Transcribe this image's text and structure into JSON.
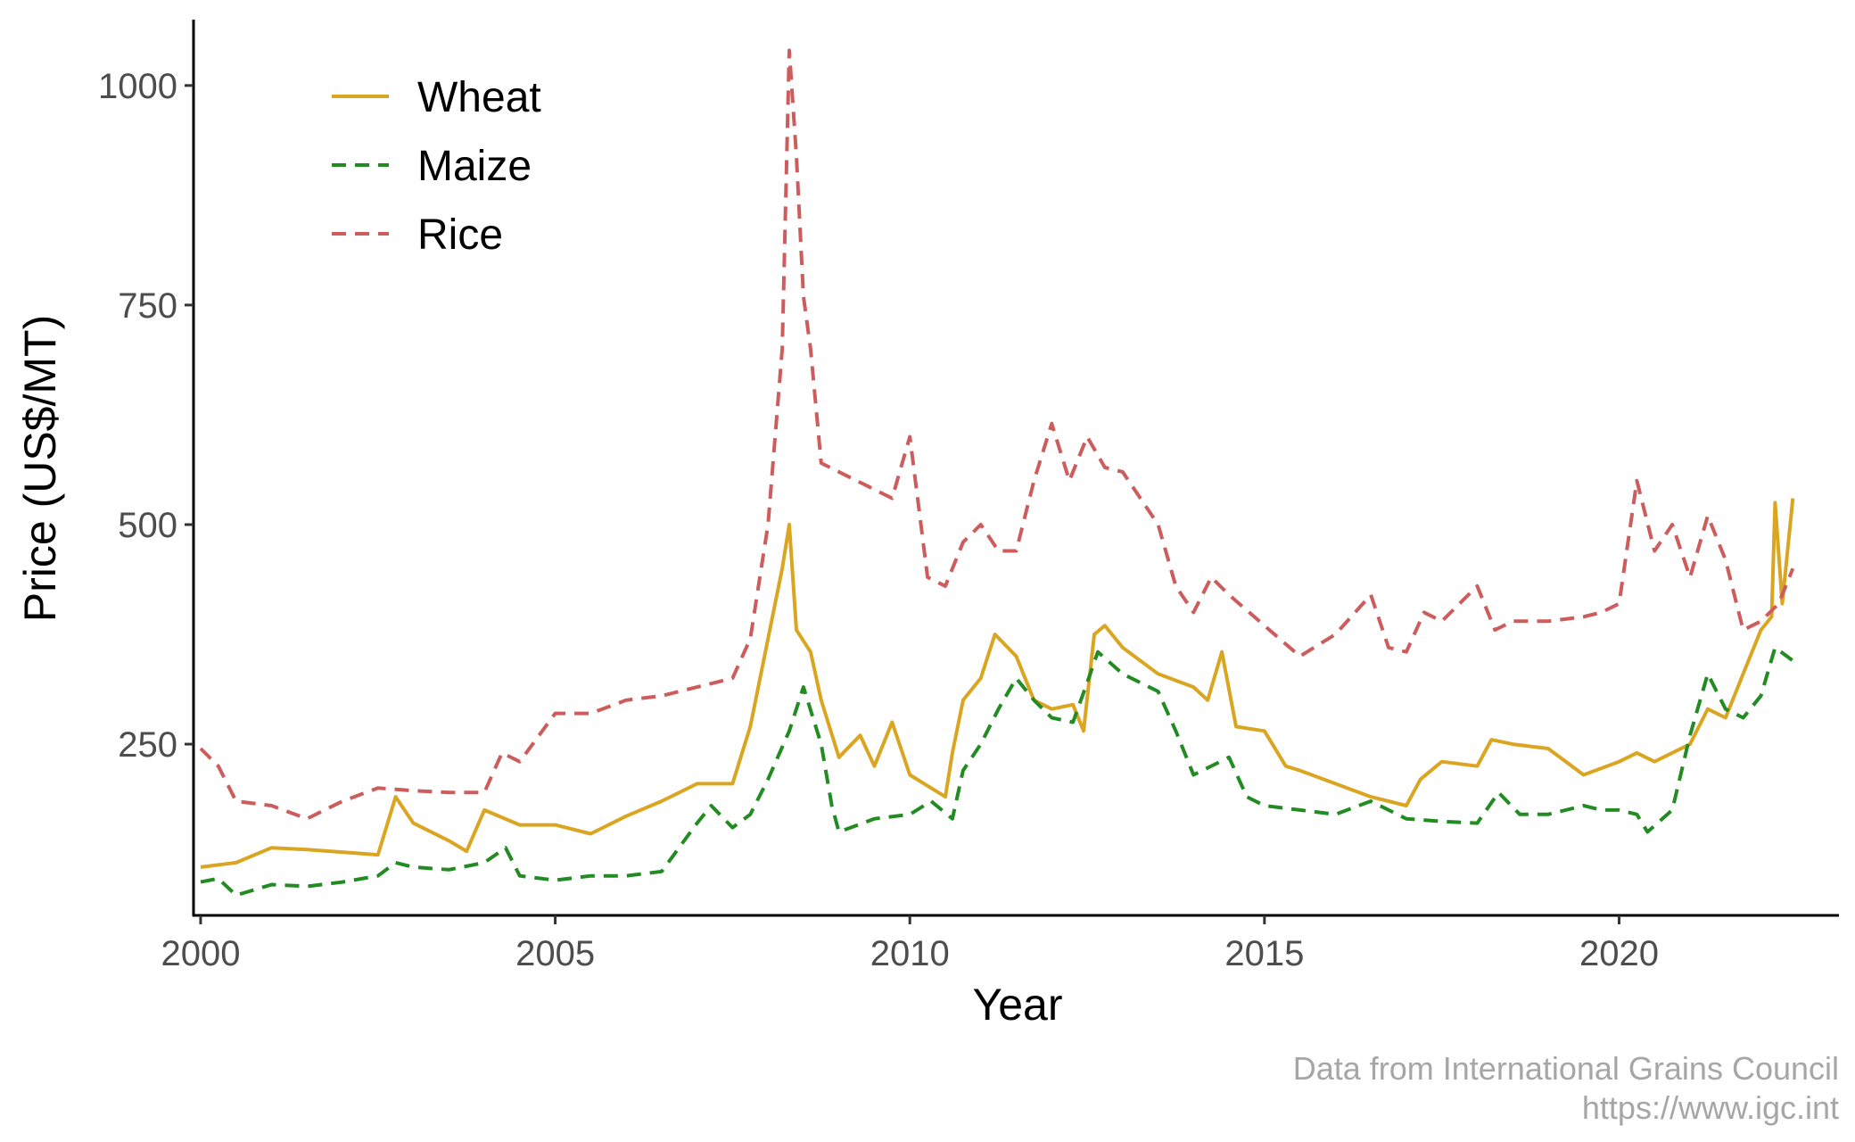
{
  "chart_data": {
    "type": "line",
    "title": "",
    "xlabel": "Year",
    "ylabel": "Price (US$/MT)",
    "xlim": [
      1999.9,
      2023.1
    ],
    "ylim": [
      55,
      1075
    ],
    "x_ticks": [
      2000,
      2005,
      2010,
      2015,
      2020
    ],
    "x_tick_labels": [
      "2000",
      "2005",
      "2010",
      "2015",
      "2020"
    ],
    "y_ticks": [
      250,
      500,
      750,
      1000
    ],
    "y_tick_labels": [
      "250",
      "500",
      "750",
      "1000"
    ],
    "grid": false,
    "legend_position": "top-left",
    "caption": [
      "Data from International Grains Council",
      "https://www.igc.int"
    ],
    "series": [
      {
        "name": "Wheat",
        "color": "#DAA520",
        "dash": "solid",
        "points": [
          [
            2000.0,
            110
          ],
          [
            2000.5,
            115
          ],
          [
            2001.0,
            132
          ],
          [
            2001.5,
            130
          ],
          [
            2002.0,
            127
          ],
          [
            2002.5,
            124
          ],
          [
            2002.75,
            190
          ],
          [
            2003.0,
            160
          ],
          [
            2003.5,
            140
          ],
          [
            2003.75,
            128
          ],
          [
            2004.0,
            175
          ],
          [
            2004.5,
            158
          ],
          [
            2005.0,
            158
          ],
          [
            2005.5,
            148
          ],
          [
            2006.0,
            168
          ],
          [
            2006.5,
            185
          ],
          [
            2007.0,
            205
          ],
          [
            2007.5,
            205
          ],
          [
            2007.75,
            270
          ],
          [
            2008.0,
            370
          ],
          [
            2008.2,
            450
          ],
          [
            2008.3,
            500
          ],
          [
            2008.4,
            380
          ],
          [
            2008.6,
            355
          ],
          [
            2008.75,
            300
          ],
          [
            2009.0,
            235
          ],
          [
            2009.3,
            260
          ],
          [
            2009.5,
            225
          ],
          [
            2009.75,
            275
          ],
          [
            2010.0,
            215
          ],
          [
            2010.3,
            200
          ],
          [
            2010.5,
            190
          ],
          [
            2010.6,
            240
          ],
          [
            2010.75,
            300
          ],
          [
            2011.0,
            325
          ],
          [
            2011.2,
            375
          ],
          [
            2011.5,
            350
          ],
          [
            2011.75,
            300
          ],
          [
            2012.0,
            290
          ],
          [
            2012.3,
            295
          ],
          [
            2012.45,
            265
          ],
          [
            2012.6,
            375
          ],
          [
            2012.75,
            385
          ],
          [
            2013.0,
            360
          ],
          [
            2013.5,
            330
          ],
          [
            2014.0,
            315
          ],
          [
            2014.2,
            300
          ],
          [
            2014.4,
            355
          ],
          [
            2014.6,
            270
          ],
          [
            2015.0,
            265
          ],
          [
            2015.3,
            225
          ],
          [
            2015.5,
            220
          ],
          [
            2016.0,
            205
          ],
          [
            2016.5,
            190
          ],
          [
            2017.0,
            180
          ],
          [
            2017.2,
            210
          ],
          [
            2017.5,
            230
          ],
          [
            2018.0,
            225
          ],
          [
            2018.2,
            255
          ],
          [
            2018.5,
            250
          ],
          [
            2019.0,
            245
          ],
          [
            2019.5,
            215
          ],
          [
            2020.0,
            230
          ],
          [
            2020.25,
            240
          ],
          [
            2020.5,
            230
          ],
          [
            2021.0,
            250
          ],
          [
            2021.25,
            290
          ],
          [
            2021.5,
            280
          ],
          [
            2021.75,
            330
          ],
          [
            2022.0,
            380
          ],
          [
            2022.15,
            395
          ],
          [
            2022.2,
            525
          ],
          [
            2022.3,
            410
          ],
          [
            2022.45,
            530
          ]
        ]
      },
      {
        "name": "Maize",
        "color": "#228B22",
        "dash": "dashed",
        "points": [
          [
            2000.0,
            93
          ],
          [
            2000.25,
            97
          ],
          [
            2000.5,
            78
          ],
          [
            2001.0,
            90
          ],
          [
            2001.5,
            88
          ],
          [
            2002.0,
            93
          ],
          [
            2002.5,
            100
          ],
          [
            2002.75,
            115
          ],
          [
            2003.0,
            110
          ],
          [
            2003.5,
            107
          ],
          [
            2004.0,
            115
          ],
          [
            2004.3,
            132
          ],
          [
            2004.5,
            100
          ],
          [
            2005.0,
            95
          ],
          [
            2005.5,
            100
          ],
          [
            2006.0,
            100
          ],
          [
            2006.5,
            105
          ],
          [
            2007.0,
            160
          ],
          [
            2007.2,
            180
          ],
          [
            2007.5,
            155
          ],
          [
            2007.75,
            170
          ],
          [
            2008.0,
            210
          ],
          [
            2008.3,
            265
          ],
          [
            2008.5,
            315
          ],
          [
            2008.75,
            250
          ],
          [
            2008.9,
            180
          ],
          [
            2009.0,
            150
          ],
          [
            2009.5,
            165
          ],
          [
            2010.0,
            170
          ],
          [
            2010.3,
            185
          ],
          [
            2010.6,
            165
          ],
          [
            2010.75,
            220
          ],
          [
            2011.0,
            250
          ],
          [
            2011.25,
            290
          ],
          [
            2011.5,
            325
          ],
          [
            2011.75,
            300
          ],
          [
            2012.0,
            280
          ],
          [
            2012.3,
            275
          ],
          [
            2012.5,
            320
          ],
          [
            2012.65,
            355
          ],
          [
            2013.0,
            330
          ],
          [
            2013.5,
            310
          ],
          [
            2013.75,
            265
          ],
          [
            2014.0,
            215
          ],
          [
            2014.5,
            235
          ],
          [
            2014.75,
            190
          ],
          [
            2015.0,
            180
          ],
          [
            2015.5,
            175
          ],
          [
            2016.0,
            170
          ],
          [
            2016.5,
            185
          ],
          [
            2017.0,
            165
          ],
          [
            2017.5,
            162
          ],
          [
            2018.0,
            160
          ],
          [
            2018.3,
            195
          ],
          [
            2018.6,
            170
          ],
          [
            2019.0,
            170
          ],
          [
            2019.5,
            180
          ],
          [
            2019.75,
            175
          ],
          [
            2020.0,
            175
          ],
          [
            2020.25,
            170
          ],
          [
            2020.4,
            150
          ],
          [
            2020.75,
            175
          ],
          [
            2021.0,
            260
          ],
          [
            2021.25,
            330
          ],
          [
            2021.5,
            290
          ],
          [
            2021.75,
            280
          ],
          [
            2022.0,
            305
          ],
          [
            2022.2,
            360
          ],
          [
            2022.45,
            345
          ]
        ]
      },
      {
        "name": "Rice",
        "color": "#CD5C5C",
        "dash": "dashed",
        "points": [
          [
            2000.0,
            245
          ],
          [
            2000.25,
            225
          ],
          [
            2000.5,
            185
          ],
          [
            2001.0,
            180
          ],
          [
            2001.5,
            165
          ],
          [
            2002.0,
            185
          ],
          [
            2002.5,
            200
          ],
          [
            2003.0,
            197
          ],
          [
            2003.5,
            195
          ],
          [
            2004.0,
            195
          ],
          [
            2004.25,
            240
          ],
          [
            2004.5,
            230
          ],
          [
            2005.0,
            285
          ],
          [
            2005.5,
            285
          ],
          [
            2006.0,
            300
          ],
          [
            2006.5,
            305
          ],
          [
            2007.0,
            315
          ],
          [
            2007.5,
            325
          ],
          [
            2007.75,
            370
          ],
          [
            2008.0,
            500
          ],
          [
            2008.2,
            700
          ],
          [
            2008.3,
            1040
          ],
          [
            2008.4,
            920
          ],
          [
            2008.5,
            760
          ],
          [
            2008.6,
            700
          ],
          [
            2008.75,
            570
          ],
          [
            2009.0,
            560
          ],
          [
            2009.5,
            540
          ],
          [
            2009.75,
            530
          ],
          [
            2010.0,
            600
          ],
          [
            2010.25,
            440
          ],
          [
            2010.5,
            430
          ],
          [
            2010.75,
            480
          ],
          [
            2011.0,
            500
          ],
          [
            2011.25,
            470
          ],
          [
            2011.5,
            470
          ],
          [
            2011.75,
            550
          ],
          [
            2012.0,
            615
          ],
          [
            2012.25,
            550
          ],
          [
            2012.5,
            600
          ],
          [
            2012.75,
            565
          ],
          [
            2013.0,
            560
          ],
          [
            2013.5,
            500
          ],
          [
            2013.75,
            430
          ],
          [
            2014.0,
            400
          ],
          [
            2014.25,
            440
          ],
          [
            2014.5,
            420
          ],
          [
            2015.0,
            385
          ],
          [
            2015.5,
            350
          ],
          [
            2016.0,
            375
          ],
          [
            2016.5,
            420
          ],
          [
            2016.75,
            360
          ],
          [
            2017.0,
            355
          ],
          [
            2017.25,
            400
          ],
          [
            2017.5,
            390
          ],
          [
            2018.0,
            430
          ],
          [
            2018.25,
            380
          ],
          [
            2018.5,
            390
          ],
          [
            2019.0,
            390
          ],
          [
            2019.5,
            395
          ],
          [
            2019.75,
            400
          ],
          [
            2020.0,
            410
          ],
          [
            2020.25,
            550
          ],
          [
            2020.5,
            470
          ],
          [
            2020.75,
            500
          ],
          [
            2021.0,
            440
          ],
          [
            2021.25,
            510
          ],
          [
            2021.5,
            460
          ],
          [
            2021.75,
            380
          ],
          [
            2022.0,
            390
          ],
          [
            2022.25,
            410
          ],
          [
            2022.45,
            450
          ]
        ]
      }
    ]
  }
}
